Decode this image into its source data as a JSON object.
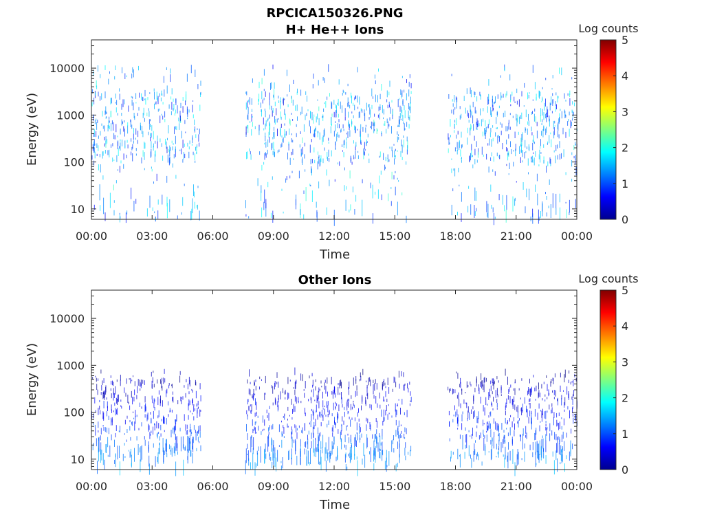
{
  "figure_title": "RPCICA150326.PNG",
  "chart_data": [
    {
      "type": "heatmap",
      "title": "H+ He++ Ions",
      "xlabel": "Time",
      "ylabel": "Energy (eV)",
      "x_ticks": [
        "00:00",
        "03:00",
        "06:00",
        "09:00",
        "12:00",
        "15:00",
        "18:00",
        "21:00",
        "00:00"
      ],
      "x_range_hours": [
        0,
        24
      ],
      "y_scale": "log",
      "y_ticks": [
        "10",
        "100",
        "1000",
        "10000"
      ],
      "y_tick_values": [
        10,
        100,
        1000,
        10000
      ],
      "y_range": [
        6,
        40000
      ],
      "data_gaps_hours": [
        [
          5.4,
          7.6
        ],
        [
          15.8,
          17.6
        ]
      ],
      "colorbar": {
        "label": "Log counts",
        "range": [
          0,
          5
        ],
        "ticks": [
          "0",
          "1",
          "2",
          "3",
          "4",
          "5"
        ],
        "colormap": "jet"
      },
      "dominant_energy_band_eV": [
        100,
        3000
      ]
    },
    {
      "type": "heatmap",
      "title": "Other Ions",
      "xlabel": "Time",
      "ylabel": "Energy (eV)",
      "x_ticks": [
        "00:00",
        "03:00",
        "06:00",
        "09:00",
        "12:00",
        "15:00",
        "18:00",
        "21:00",
        "00:00"
      ],
      "x_range_hours": [
        0,
        24
      ],
      "y_scale": "log",
      "y_ticks": [
        "10",
        "100",
        "1000",
        "10000"
      ],
      "y_tick_values": [
        10,
        100,
        1000,
        10000
      ],
      "y_range": [
        6,
        40000
      ],
      "data_gaps_hours": [
        [
          5.4,
          7.6
        ],
        [
          15.8,
          17.6
        ]
      ],
      "colorbar": {
        "label": "Log counts",
        "range": [
          0,
          5
        ],
        "ticks": [
          "0",
          "1",
          "2",
          "3",
          "4",
          "5"
        ],
        "colormap": "jet"
      },
      "dominant_energy_band_eV": [
        10,
        500
      ]
    }
  ]
}
